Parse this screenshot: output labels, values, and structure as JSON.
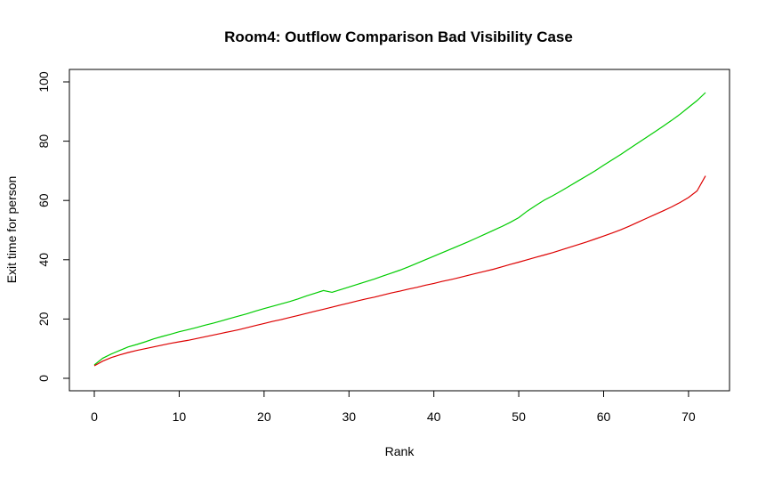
{
  "chart_data": {
    "type": "line",
    "title": "Room4: Outflow Comparison Bad Visibility Case",
    "xlabel": "Rank",
    "ylabel": "Exit time for person",
    "xlim": [
      0,
      72
    ],
    "ylim": [
      0,
      100
    ],
    "x_ticks": [
      "0",
      "10",
      "20",
      "30",
      "40",
      "50",
      "60",
      "70"
    ],
    "y_ticks": [
      "0",
      "20",
      "40",
      "60",
      "80",
      "100"
    ],
    "grid": false,
    "legend": "none",
    "series": [
      {
        "color": "#00cc00",
        "x": [
          0,
          1,
          2,
          3,
          4,
          5,
          6,
          7,
          8,
          9,
          10,
          11,
          12,
          13,
          14,
          15,
          16,
          17,
          18,
          19,
          20,
          21,
          22,
          23,
          24,
          25,
          26,
          27,
          28,
          29,
          30,
          31,
          32,
          33,
          34,
          35,
          36,
          37,
          38,
          39,
          40,
          41,
          42,
          43,
          44,
          45,
          46,
          47,
          48,
          49,
          50,
          51,
          52,
          53,
          54,
          55,
          56,
          57,
          58,
          59,
          60,
          61,
          62,
          63,
          64,
          65,
          66,
          67,
          68,
          69,
          70,
          71,
          72
        ],
        "values": [
          4.5,
          6.8,
          8.2,
          9.4,
          10.6,
          11.4,
          12.3,
          13.3,
          14.1,
          14.9,
          15.7,
          16.4,
          17.1,
          17.9,
          18.6,
          19.4,
          20.2,
          21.0,
          21.8,
          22.7,
          23.5,
          24.3,
          25.1,
          25.9,
          26.8,
          27.8,
          28.7,
          29.6,
          29.0,
          29.9,
          30.8,
          31.7,
          32.6,
          33.5,
          34.5,
          35.5,
          36.5,
          37.6,
          38.8,
          40.0,
          41.2,
          42.4,
          43.6,
          44.8,
          46.0,
          47.3,
          48.6,
          49.9,
          51.2,
          52.6,
          54.2,
          56.4,
          58.3,
          60.1,
          61.6,
          63.2,
          64.9,
          66.6,
          68.3,
          70.0,
          71.9,
          73.7,
          75.5,
          77.4,
          79.3,
          81.2,
          83.1,
          85.0,
          87.0,
          89.1,
          91.4,
          93.7,
          96.4
        ]
      },
      {
        "color": "#dd0000",
        "x": [
          0,
          1,
          2,
          3,
          4,
          5,
          6,
          7,
          8,
          9,
          10,
          11,
          12,
          13,
          14,
          15,
          16,
          17,
          18,
          19,
          20,
          21,
          22,
          23,
          24,
          25,
          26,
          27,
          28,
          29,
          30,
          31,
          32,
          33,
          34,
          35,
          36,
          37,
          38,
          39,
          40,
          41,
          42,
          43,
          44,
          45,
          46,
          47,
          48,
          49,
          50,
          51,
          52,
          53,
          54,
          55,
          56,
          57,
          58,
          59,
          60,
          61,
          62,
          63,
          64,
          65,
          66,
          67,
          68,
          69,
          70,
          71,
          72
        ],
        "values": [
          4.2,
          5.8,
          7.0,
          7.9,
          8.7,
          9.4,
          10.0,
          10.6,
          11.2,
          11.8,
          12.3,
          12.8,
          13.4,
          14.0,
          14.6,
          15.2,
          15.8,
          16.4,
          17.1,
          17.8,
          18.5,
          19.2,
          19.8,
          20.5,
          21.2,
          21.9,
          22.6,
          23.3,
          24.0,
          24.7,
          25.4,
          26.1,
          26.8,
          27.4,
          28.1,
          28.8,
          29.4,
          30.1,
          30.7,
          31.4,
          32.0,
          32.7,
          33.3,
          34.0,
          34.7,
          35.4,
          36.1,
          36.8,
          37.6,
          38.4,
          39.2,
          40.0,
          40.8,
          41.6,
          42.4,
          43.3,
          44.2,
          45.1,
          46.0,
          47.0,
          48.0,
          49.0,
          50.1,
          51.3,
          52.6,
          53.9,
          55.2,
          56.5,
          57.8,
          59.3,
          61.0,
          63.2,
          68.3
        ]
      }
    ]
  }
}
